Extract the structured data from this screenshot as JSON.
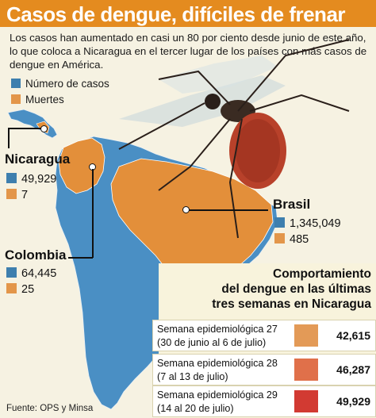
{
  "title": "Casos de dengue, difíciles de frenar",
  "intro": "Los casos han aumentado en casi un 80 por ciento desde junio de este año, lo que coloca a Nicaragua en el tercer lugar de los países con más casos de dengue en América.",
  "legend": [
    {
      "label": "Número de casos",
      "color": "#3e7fae"
    },
    {
      "label": "Muertes",
      "color": "#e3964a"
    }
  ],
  "countries": {
    "nicaragua": {
      "name": "Nicaragua",
      "cases": "49,929",
      "deaths": "7"
    },
    "colombia": {
      "name": "Colombia",
      "cases": "64,445",
      "deaths": "25"
    },
    "brasil": {
      "name": "Brasil",
      "cases": "1,345,049",
      "deaths": "485"
    }
  },
  "comparison": {
    "title_l1": "Comportamiento",
    "title_l2": "del dengue en las últimas",
    "title_l3": "tres semanas en Nicaragua",
    "weeks": [
      {
        "line1": "Semana epidemiológica 27",
        "line2": "(30 de junio al 6 de julio)",
        "value": "42,615",
        "color": "#e39a57"
      },
      {
        "line1": "Semana epidemiológica 28",
        "line2": "(7 al 13 de julio)",
        "value": "46,287",
        "color": "#e0704a"
      },
      {
        "line1": "Semana epidemiológica 29",
        "line2": "(14 al 20 de julio)",
        "value": "49,929",
        "color": "#d23a32"
      }
    ]
  },
  "source": "Fuente: OPS y Minsa",
  "colors": {
    "banner": "#e48b1f",
    "land_blue": "#4a8fc4",
    "nicaragua_orange": "#e38f3a"
  }
}
